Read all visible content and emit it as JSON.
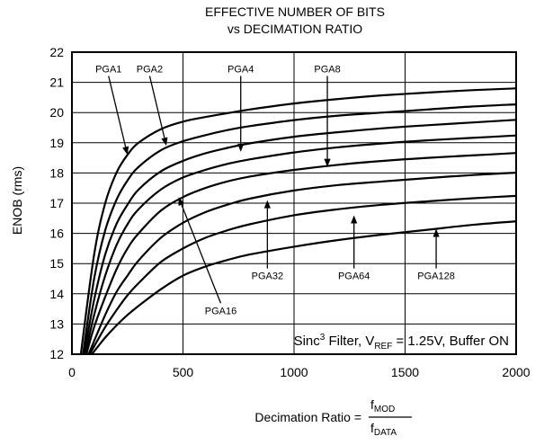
{
  "chart_data": {
    "type": "line",
    "title": "EFFECTIVE NUMBER OF BITS",
    "subtitle": "vs DECIMATION RATIO",
    "ylabel": "ENOB (rms)",
    "xlabel": {
      "prefix": "Decimation Ratio =",
      "numerator_base": "f",
      "numerator_sub": "MOD",
      "denominator_base": "f",
      "denominator_sub": "DATA"
    },
    "xlim": [
      0,
      2000
    ],
    "ylim": [
      12,
      22
    ],
    "xticks": [
      0,
      500,
      1000,
      1500,
      2000
    ],
    "yticks": [
      12,
      13,
      14,
      15,
      16,
      17,
      18,
      19,
      20,
      21,
      22
    ],
    "grid": true,
    "annotation": {
      "pre": "Sinc",
      "sup": "3",
      "mid": " Filter, V",
      "sub": "REF",
      "post": " = 1.25V, Buffer ON"
    },
    "series": [
      {
        "name": "PGA1",
        "x": [
          40,
          100,
          150,
          200,
          250,
          300,
          400,
          500,
          600,
          700,
          800,
          1000,
          1200,
          1400,
          1600,
          1800,
          2000
        ],
        "y": [
          12.0,
          15.3,
          17.0,
          18.0,
          18.6,
          19.0,
          19.45,
          19.7,
          19.85,
          19.98,
          20.1,
          20.3,
          20.45,
          20.57,
          20.66,
          20.74,
          20.8
        ]
      },
      {
        "name": "PGA2",
        "x": [
          50,
          100,
          150,
          200,
          250,
          300,
          400,
          500,
          600,
          700,
          800,
          1000,
          1200,
          1400,
          1600,
          1800,
          2000
        ],
        "y": [
          12.0,
          14.5,
          16.1,
          17.1,
          17.75,
          18.2,
          18.75,
          19.05,
          19.25,
          19.42,
          19.55,
          19.75,
          19.9,
          20.0,
          20.1,
          20.2,
          20.27
        ]
      },
      {
        "name": "PGA4",
        "x": [
          55,
          100,
          150,
          200,
          250,
          300,
          400,
          500,
          600,
          700,
          800,
          1000,
          1200,
          1400,
          1600,
          1800,
          2000
        ],
        "y": [
          12.0,
          13.8,
          15.3,
          16.3,
          16.95,
          17.45,
          18.05,
          18.4,
          18.65,
          18.83,
          18.98,
          19.2,
          19.35,
          19.48,
          19.58,
          19.67,
          19.76
        ]
      },
      {
        "name": "PGA8",
        "x": [
          60,
          100,
          150,
          200,
          250,
          300,
          400,
          500,
          600,
          700,
          800,
          1000,
          1200,
          1400,
          1600,
          1800,
          2000
        ],
        "y": [
          12.0,
          13.3,
          14.6,
          15.6,
          16.3,
          16.8,
          17.45,
          17.85,
          18.1,
          18.3,
          18.45,
          18.68,
          18.85,
          18.98,
          19.08,
          19.16,
          19.24
        ]
      },
      {
        "name": "PGA16",
        "x": [
          65,
          100,
          150,
          200,
          250,
          300,
          400,
          500,
          600,
          700,
          800,
          1000,
          1200,
          1400,
          1600,
          1800,
          2000
        ],
        "y": [
          12.0,
          12.9,
          13.9,
          14.8,
          15.5,
          16.0,
          16.75,
          17.2,
          17.5,
          17.72,
          17.88,
          18.1,
          18.27,
          18.4,
          18.5,
          18.58,
          18.66
        ]
      },
      {
        "name": "PGA32",
        "x": [
          75,
          150,
          200,
          250,
          300,
          400,
          500,
          600,
          700,
          800,
          1000,
          1200,
          1400,
          1600,
          1800,
          2000
        ],
        "y": [
          12.0,
          13.3,
          14.05,
          14.6,
          15.1,
          15.85,
          16.35,
          16.7,
          16.95,
          17.15,
          17.42,
          17.6,
          17.72,
          17.83,
          17.93,
          18.01
        ]
      },
      {
        "name": "PGA64",
        "x": [
          80,
          150,
          200,
          250,
          300,
          400,
          500,
          600,
          700,
          800,
          1000,
          1200,
          1400,
          1600,
          1800,
          2000
        ],
        "y": [
          12.0,
          12.9,
          13.45,
          13.95,
          14.35,
          15.05,
          15.5,
          15.85,
          16.1,
          16.3,
          16.6,
          16.8,
          16.95,
          17.06,
          17.16,
          17.24
        ]
      },
      {
        "name": "PGA128",
        "x": [
          90,
          150,
          200,
          250,
          300,
          400,
          500,
          600,
          700,
          800,
          1000,
          1200,
          1400,
          1600,
          1800,
          2000
        ],
        "y": [
          12.0,
          12.55,
          12.95,
          13.3,
          13.6,
          14.15,
          14.6,
          14.9,
          15.12,
          15.3,
          15.56,
          15.78,
          15.96,
          16.12,
          16.28,
          16.4
        ]
      }
    ],
    "labels": [
      {
        "text": "PGA1",
        "x": 165,
        "y": 21.45,
        "ax": 250,
        "ay": 18.6
      },
      {
        "text": "PGA2",
        "x": 350,
        "y": 21.45,
        "ax": 425,
        "ay": 18.9
      },
      {
        "text": "PGA4",
        "x": 760,
        "y": 21.45,
        "ax": 760,
        "ay": 18.7
      },
      {
        "text": "PGA8",
        "x": 1150,
        "y": 21.45,
        "ax": 1150,
        "ay": 18.2
      },
      {
        "text": "PGA16",
        "x": 670,
        "y": 13.45,
        "ax": 480,
        "ay": 17.2
      },
      {
        "text": "PGA32",
        "x": 880,
        "y": 14.6,
        "ax": 880,
        "ay": 17.1
      },
      {
        "text": "PGA64",
        "x": 1270,
        "y": 14.6,
        "ax": 1270,
        "ay": 16.6
      },
      {
        "text": "PGA128",
        "x": 1640,
        "y": 14.6,
        "ax": 1640,
        "ay": 16.15
      }
    ]
  }
}
